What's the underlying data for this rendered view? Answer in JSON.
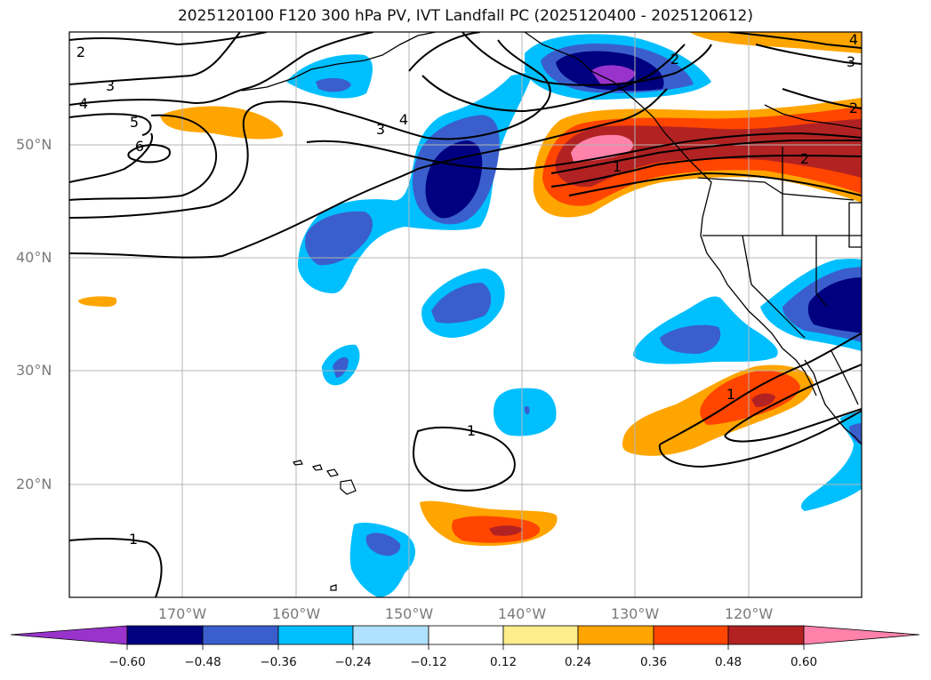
{
  "title": "2025120100 F120 300 hPa PV, IVT Landfall PC (2025120400 - 2025120612)",
  "colors": {
    "c_n060": "#9933cc",
    "c_n048": "#000080",
    "c_n036": "#3a5fcd",
    "c_n024": "#00bfff",
    "c_n012": "#b0e2ff",
    "c_0": "#ffffff",
    "c_p012": "#ffec8b",
    "c_p024": "#ffa500",
    "c_p036": "#ff4500",
    "c_p048": "#b22222",
    "c_p060": "#ff82ab",
    "grid": "#b4b4b4",
    "axis_label": "#7a7a7a",
    "contour": "#000000"
  },
  "map": {
    "lat_labels": [
      "50°N",
      "40°N",
      "30°N",
      "20°N"
    ],
    "lon_labels": [
      "170°W",
      "160°W",
      "150°W",
      "140°W",
      "130°W",
      "120°W"
    ],
    "contour_labels": [
      "2",
      "3",
      "4",
      "5",
      "6",
      "3",
      "4",
      "2",
      "3",
      "2",
      "2",
      "1",
      "1",
      "1",
      "1",
      "4"
    ]
  },
  "colorbar": {
    "ticks": [
      "−0.60",
      "−0.48",
      "−0.36",
      "−0.24",
      "−0.12",
      "0.12",
      "0.24",
      "0.36",
      "0.48",
      "0.60"
    ]
  }
}
